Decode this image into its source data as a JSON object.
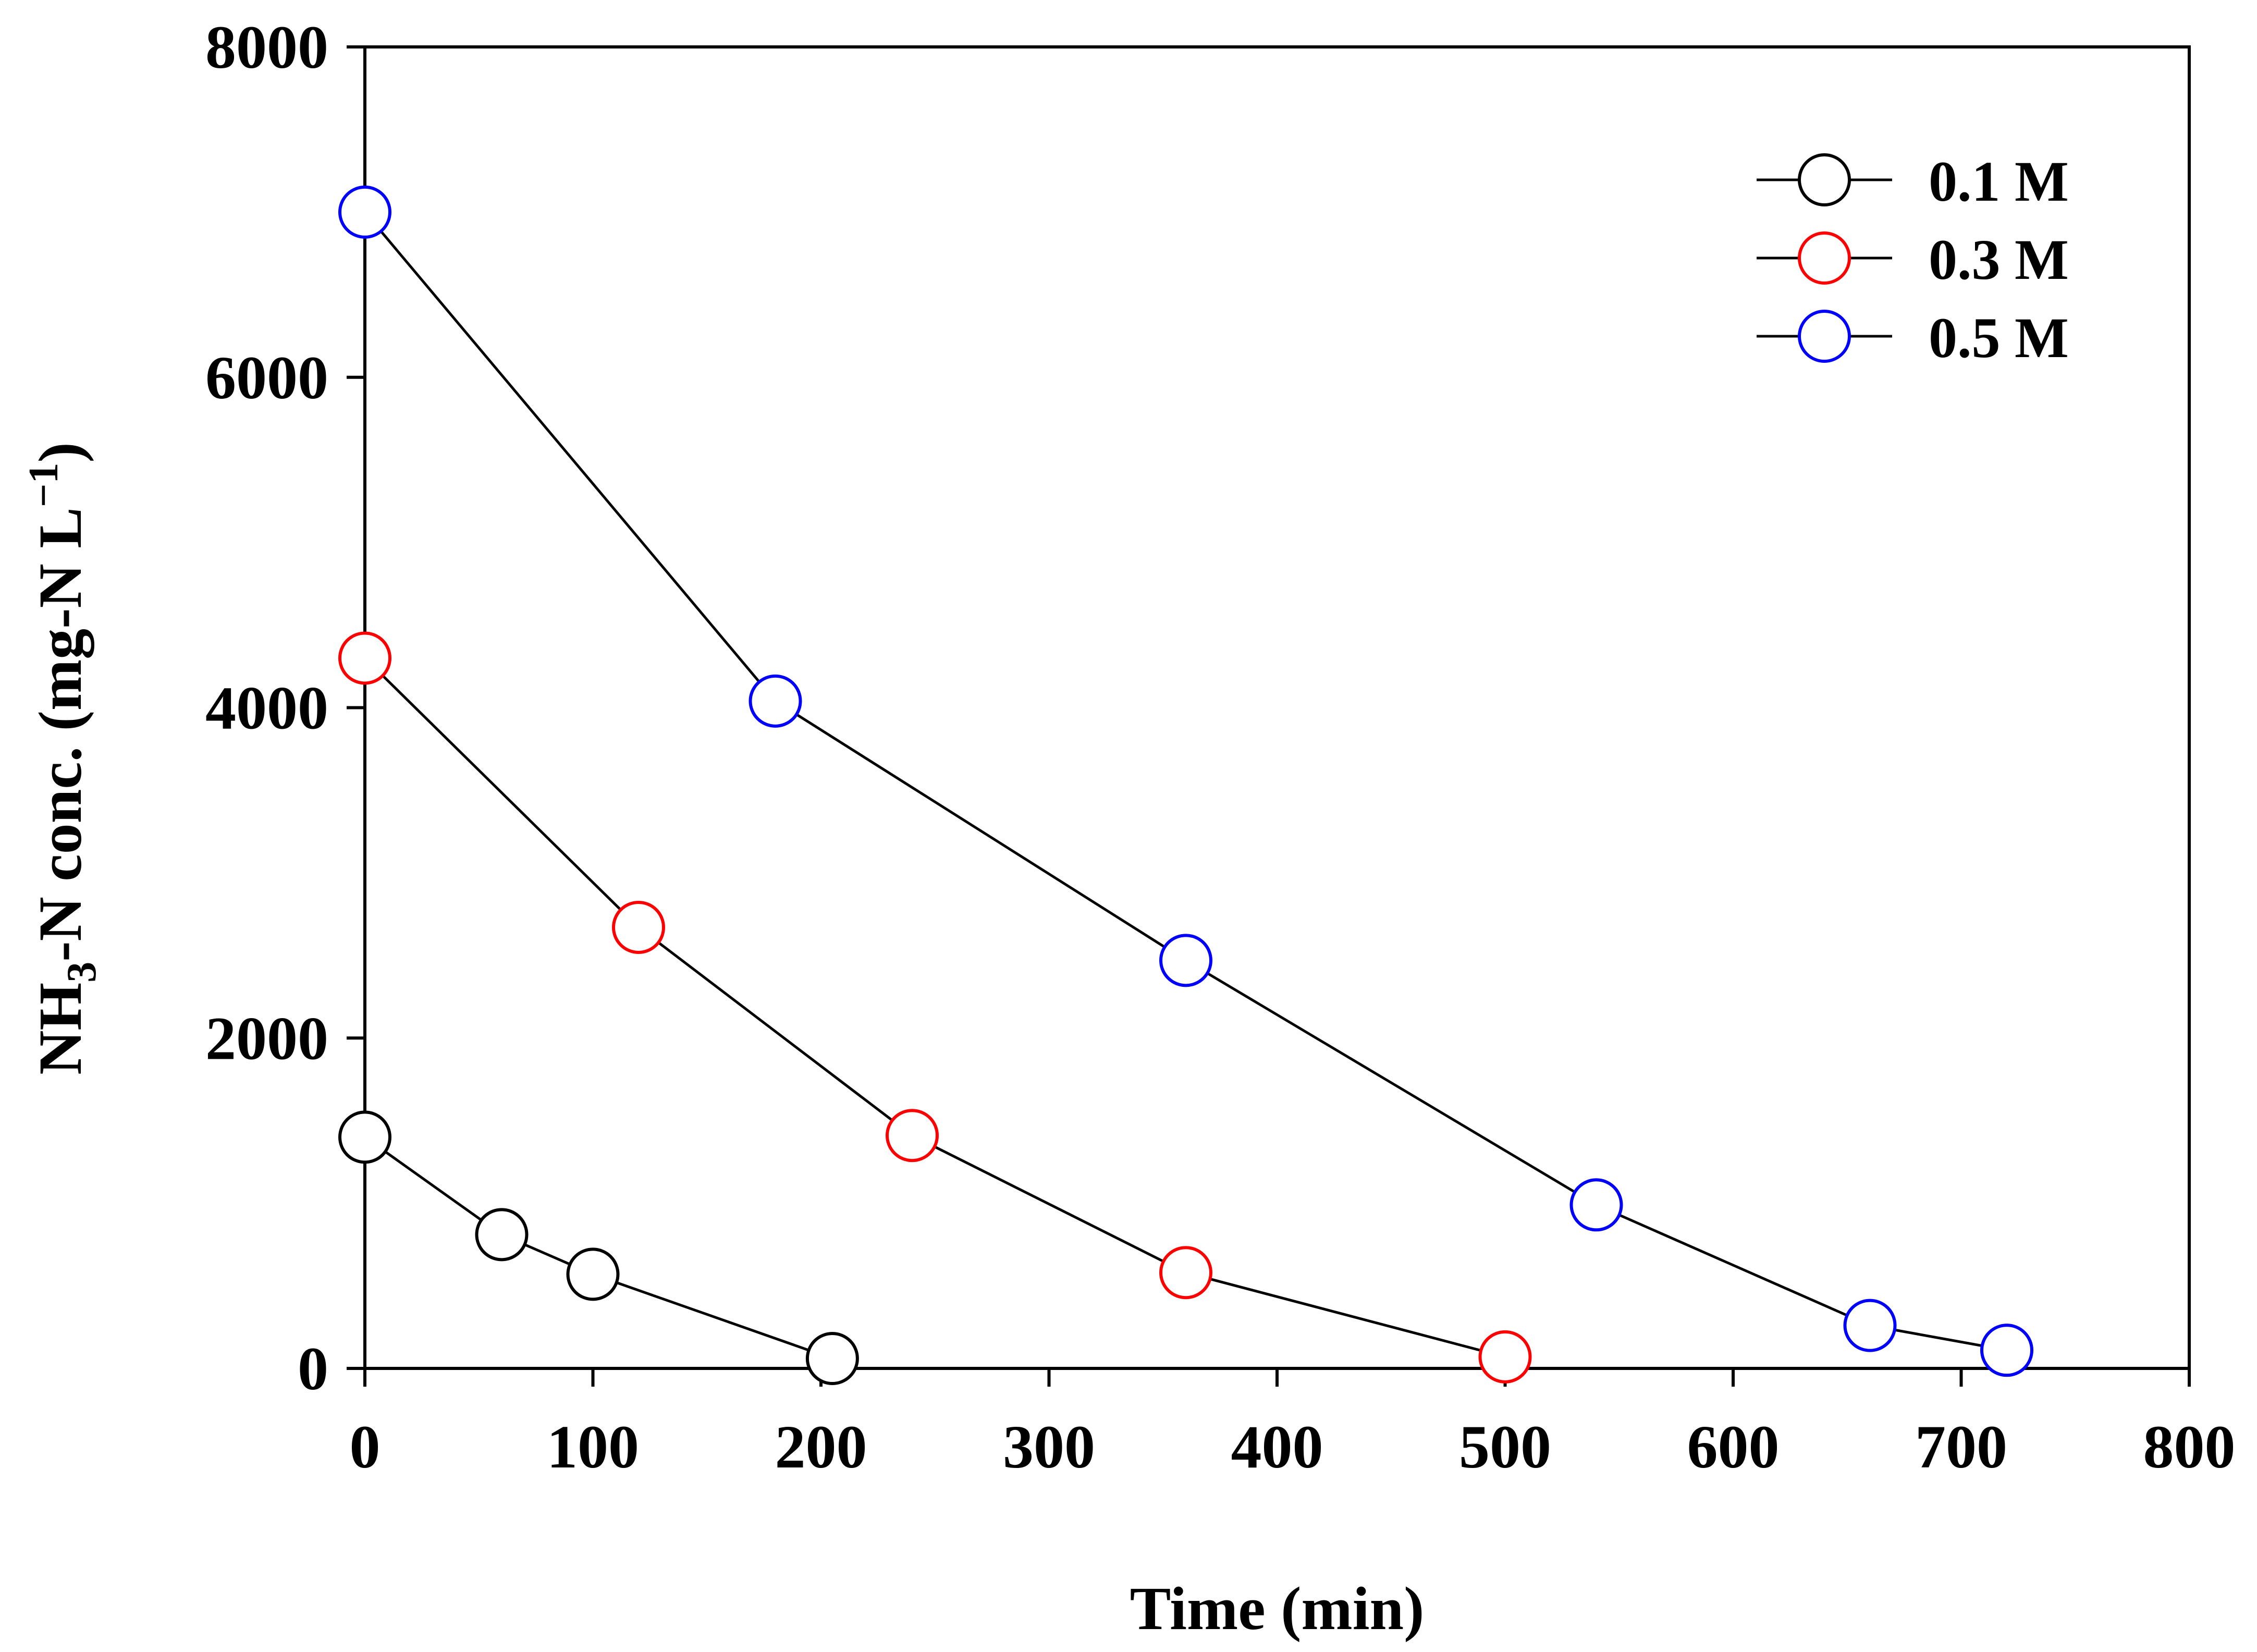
{
  "chart_data": {
    "type": "line",
    "title": "",
    "xlabel": "Time (min)",
    "ylabel_main": "NH",
    "ylabel_sub": "3",
    "ylabel_rest": "-N conc. (mg-N L",
    "ylabel_sup": "−1",
    "ylabel_close": ")",
    "xlim": [
      0,
      800
    ],
    "ylim": [
      0,
      8000
    ],
    "xticks": [
      "0",
      "100",
      "200",
      "300",
      "400",
      "500",
      "600",
      "700",
      "800"
    ],
    "yticks": [
      "0",
      "2000",
      "4000",
      "6000",
      "8000"
    ],
    "legend_position": "top-right",
    "grid": false,
    "series": [
      {
        "name": "0.1 M",
        "color": "#000000",
        "x": [
          0,
          60,
          100,
          205
        ],
        "y": [
          1400,
          810,
          570,
          60
        ]
      },
      {
        "name": "0.3 M",
        "color": "#ff0000",
        "x": [
          0,
          120,
          240,
          360,
          500
        ],
        "y": [
          4300,
          2670,
          1410,
          580,
          70
        ]
      },
      {
        "name": "0.5 M",
        "color": "#0000ff",
        "x": [
          0,
          180,
          360,
          540,
          660,
          720
        ],
        "y": [
          7000,
          4040,
          2470,
          990,
          260,
          110
        ]
      }
    ]
  }
}
